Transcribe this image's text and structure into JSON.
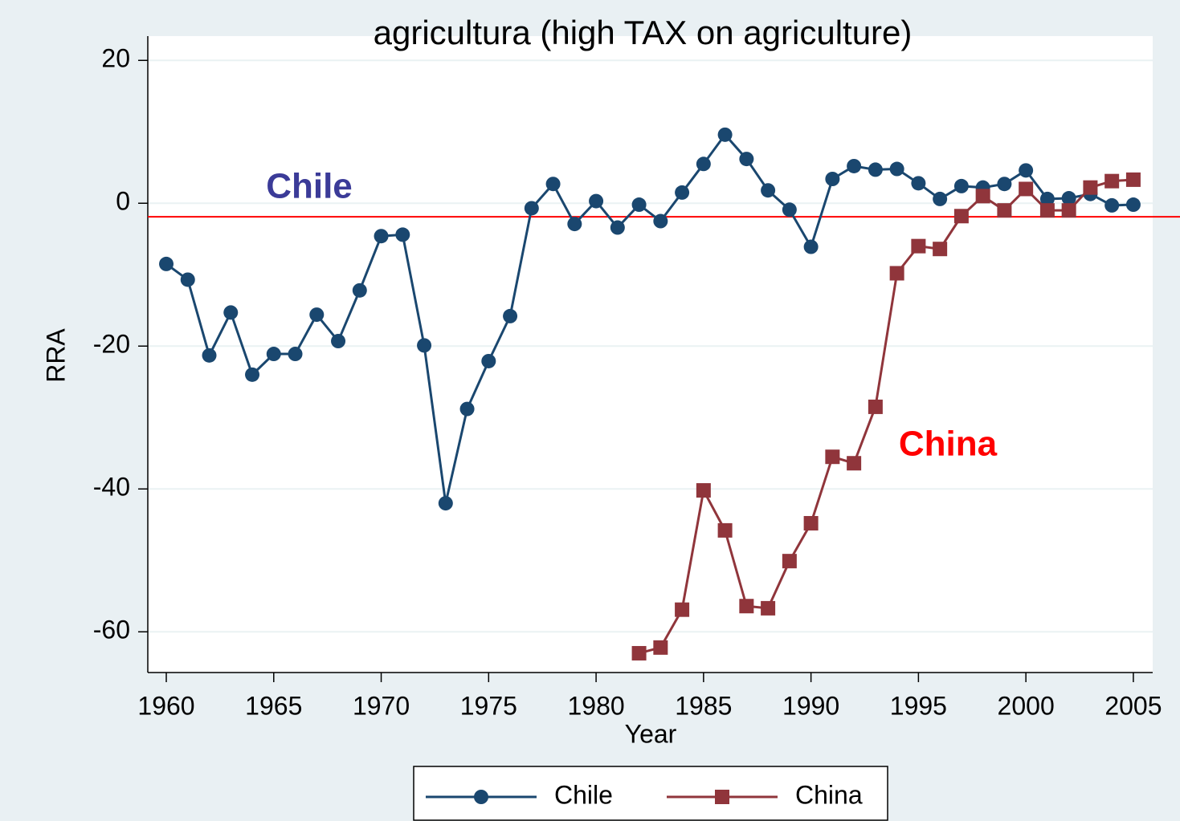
{
  "chart_data": {
    "type": "line",
    "title": "agricultura (high TAX on agriculture)",
    "x_label": "Year",
    "y_label": "RRA",
    "x": [
      1960,
      1961,
      1962,
      1963,
      1964,
      1965,
      1966,
      1967,
      1968,
      1969,
      1970,
      1971,
      1972,
      1973,
      1974,
      1975,
      1976,
      1977,
      1978,
      1979,
      1980,
      1981,
      1982,
      1983,
      1984,
      1985,
      1986,
      1987,
      1988,
      1989,
      1990,
      1991,
      1992,
      1993,
      1994,
      1995,
      1996,
      1997,
      1998,
      1999,
      2000,
      2001,
      2002,
      2003,
      2004,
      2005
    ],
    "series": [
      {
        "name": "Chile",
        "color": "#1a476f",
        "marker": "circle",
        "values": [
          -8.5,
          -10.7,
          -21.3,
          -15.3,
          -24.0,
          -21.1,
          -21.1,
          -15.6,
          -19.3,
          -12.2,
          -4.6,
          -4.4,
          -19.9,
          -42.0,
          -28.8,
          -22.1,
          -15.8,
          -0.7,
          2.7,
          -2.9,
          0.3,
          -3.4,
          -0.2,
          -2.5,
          1.5,
          5.5,
          9.6,
          6.2,
          1.8,
          -0.9,
          -6.1,
          3.4,
          5.2,
          4.7,
          4.8,
          2.8,
          0.6,
          2.4,
          2.2,
          2.7,
          4.6,
          0.6,
          0.7,
          1.3,
          -0.3,
          -0.2
        ]
      },
      {
        "name": "China",
        "color": "#90353b",
        "marker": "square",
        "values": [
          null,
          null,
          null,
          null,
          null,
          null,
          null,
          null,
          null,
          null,
          null,
          null,
          null,
          null,
          null,
          null,
          null,
          null,
          null,
          null,
          null,
          null,
          -63.0,
          -62.2,
          -56.9,
          -40.2,
          -45.8,
          -56.4,
          -56.7,
          -50.1,
          -44.8,
          -35.5,
          -36.4,
          -28.5,
          -9.8,
          -6.0,
          -6.4,
          -1.8,
          1.0,
          -1.0,
          2.0,
          -1.0,
          -1.0,
          2.2,
          3.1,
          3.3
        ]
      }
    ],
    "reference_line": {
      "value": -1.9,
      "color": "#ff0000"
    },
    "annotations": [
      {
        "text": "Chile",
        "color": "#3b3b98"
      },
      {
        "text": "China",
        "color": "#ff0000"
      }
    ],
    "xlim": [
      1959.14,
      2005.9
    ],
    "ylim": [
      -65.7,
      23.4
    ],
    "xticks": [
      1960,
      1965,
      1970,
      1975,
      1980,
      1985,
      1990,
      1995,
      2000,
      2005
    ],
    "yticks": [
      -60,
      -40,
      -20,
      0,
      20
    ],
    "grid": true,
    "legend": "bottom"
  }
}
